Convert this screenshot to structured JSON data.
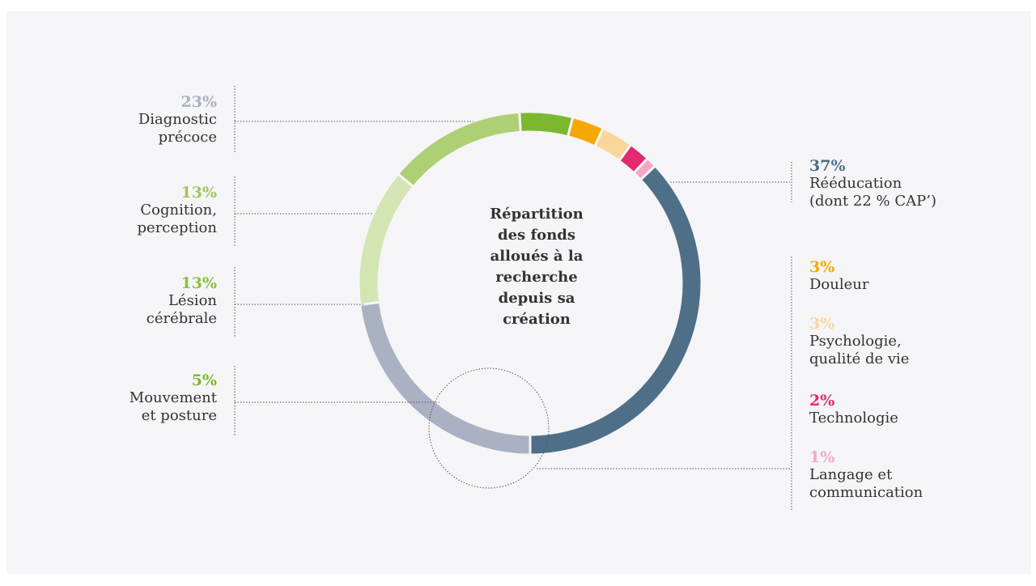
{
  "chart_data": {
    "type": "pie",
    "donut": true,
    "center_title": {
      "lines": [
        "Répartition",
        "des fonds",
        "alloués à la",
        "recherche"
      ],
      "emphasis_lines": [
        "depuis sa",
        "création"
      ]
    },
    "slices": [
      {
        "label": "Rééducation\n(dont 22 % CAP’)",
        "value_text": "37%",
        "value": 37,
        "color": "#4f6f88"
      },
      {
        "label": "Langage et\ncommunication",
        "value_text": "1%",
        "value": 1,
        "color": "#f5a7c3"
      },
      {
        "label": "Technologie",
        "value_text": "2%",
        "value": 2,
        "color": "#e3296f"
      },
      {
        "label": "Psychologie,\nqualité de vie",
        "value_text": "3%",
        "value": 3,
        "color": "#fcd59a"
      },
      {
        "label": "Douleur",
        "value_text": "3%",
        "value": 3,
        "color": "#f5a800"
      },
      {
        "label": "Mouvement\net posture",
        "value_text": "5%",
        "value": 5,
        "color": "#7cb82f"
      },
      {
        "label": "Lésion\ncérébrale",
        "value_text": "13%",
        "value": 13,
        "color": "#aecf73"
      },
      {
        "label": "Cognition,\nperception",
        "value_text": "13%",
        "value": 13,
        "color": "#d3e5b2"
      },
      {
        "label": "Diagnostic\nprécoce",
        "value_text": "23%",
        "value": 23,
        "color": "#a9b1c2"
      }
    ],
    "start_angle_deg": 180,
    "direction": "counterclockwise"
  }
}
